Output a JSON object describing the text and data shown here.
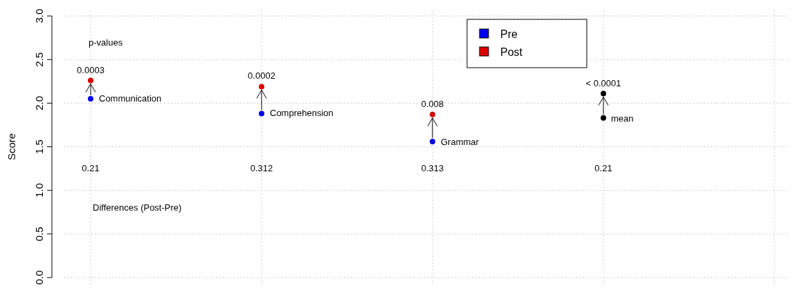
{
  "chart_data": {
    "type": "scatter",
    "ylabel": "Score",
    "categories": [
      null,
      null,
      null,
      null,
      null
    ],
    "ylim": [
      -0.08,
      3.08
    ],
    "yticks": [
      {
        "value": 0,
        "label": "0.0"
      },
      {
        "value": 0.5,
        "label": "0.5"
      },
      {
        "value": 1,
        "label": "1.0"
      },
      {
        "value": 1.5,
        "label": "1.5"
      },
      {
        "value": 2,
        "label": "2.0"
      },
      {
        "value": 2.5,
        "label": "2.5"
      },
      {
        "value": 3,
        "label": "3.0"
      }
    ],
    "grid": true,
    "legend": "top",
    "marker": "circle",
    "series": [
      {
        "name": "Pre",
        "color": "#0000ee",
        "colors": [
          "#0000ee",
          "#0000ee",
          "#0000ee",
          "#000000",
          null
        ],
        "values": [
          2.05,
          1.88,
          1.56,
          1.83,
          null
        ]
      },
      {
        "name": "Post",
        "color": "#dd0000",
        "colors": [
          "#dd0000",
          "#dd0000",
          "#dd0000",
          "#000000",
          null
        ],
        "values": [
          2.26,
          2.19,
          1.87,
          2.11,
          null
        ]
      }
    ],
    "annotations": [
      "p-values",
      "0.0003",
      "0.0002",
      "0.008",
      "< 0.0001",
      "Communication",
      "Comprehension",
      "Grammar",
      "mean",
      "0.21",
      "0.312",
      "0.313",
      "0.21",
      "Differences (Post-Pre)"
    ]
  }
}
